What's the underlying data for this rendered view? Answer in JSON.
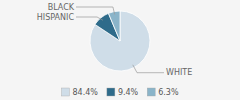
{
  "chart_data": {
    "type": "pie",
    "categories": [
      "WHITE",
      "HISPANIC",
      "BLACK"
    ],
    "values": [
      84.4,
      9.4,
      6.3
    ],
    "value_labels": [
      "84.4%",
      "9.4%",
      "6.3%"
    ],
    "colors": [
      "#cfdde8",
      "#2e6b8a",
      "#8ab4c9"
    ],
    "legend": "bottom"
  }
}
